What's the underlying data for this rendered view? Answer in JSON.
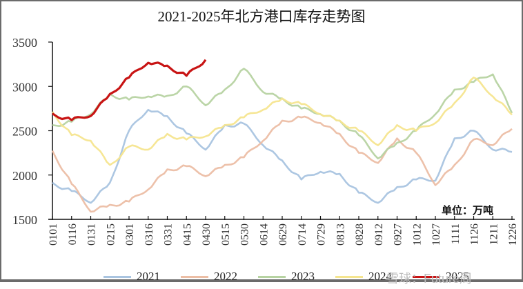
{
  "title": "2021-2025年北方港口库存走势图",
  "unit_label": "单位：万吨",
  "watermark": "雪球：Future周",
  "colors": {
    "2021": "#a9c4e0",
    "2022": "#ecbea5",
    "2023": "#b7d3a2",
    "2024": "#f5e58f",
    "2025": "#c81414"
  },
  "legend": [
    {
      "label": "2021",
      "color": "#a9c4e0"
    },
    {
      "label": "2022",
      "color": "#ecbea5"
    },
    {
      "label": "2023",
      "color": "#b7d3a2"
    },
    {
      "label": "2024",
      "color": "#f5e58f"
    },
    {
      "label": "2025",
      "color": "#c81414"
    }
  ],
  "chart_data": {
    "type": "line",
    "title": "2021-2025年北方港口库存走势图",
    "xlabel": "",
    "ylabel": "单位：万吨",
    "ylim": [
      1500,
      3500
    ],
    "yticks": [
      1500,
      2000,
      2500,
      3000,
      3500
    ],
    "grid": false,
    "legend_position": "bottom",
    "categories": [
      "0101",
      "0116",
      "0131",
      "0215",
      "0301",
      "0316",
      "0331",
      "0415",
      "0430",
      "0515",
      "0530",
      "0614",
      "0629",
      "0714",
      "0729",
      "0813",
      "0828",
      "0912",
      "0927",
      "1012",
      "1027",
      "1111",
      "1126",
      "1211",
      "1226"
    ],
    "series": [
      {
        "name": "2021",
        "values": [
          1900,
          1820,
          1700,
          1900,
          2500,
          2750,
          2650,
          2470,
          2300,
          2550,
          2580,
          2350,
          2150,
          1950,
          2050,
          2000,
          1800,
          1700,
          1850,
          1950,
          1950,
          2400,
          2500,
          2300,
          2260
        ]
      },
      {
        "name": "2022",
        "values": [
          2260,
          1900,
          1600,
          1650,
          1700,
          1850,
          2050,
          2100,
          2000,
          2100,
          2200,
          2400,
          2600,
          2650,
          2600,
          2450,
          2250,
          2150,
          2400,
          2250,
          1900,
          2100,
          2400,
          2350,
          2520
        ]
      },
      {
        "name": "2023",
        "values": [
          2550,
          2600,
          2700,
          2900,
          2850,
          2900,
          2880,
          3000,
          2800,
          2950,
          3200,
          2950,
          2850,
          2750,
          2700,
          2600,
          2450,
          2200,
          2350,
          2500,
          2700,
          2950,
          3050,
          3150,
          2700
        ]
      },
      {
        "name": "2024",
        "values": [
          2700,
          2450,
          2400,
          2100,
          2320,
          2300,
          2450,
          2400,
          2450,
          2550,
          2650,
          2750,
          2850,
          2800,
          2700,
          2600,
          2500,
          2350,
          2550,
          2500,
          2600,
          2800,
          3100,
          2900,
          2680
        ]
      },
      {
        "name": "2025",
        "values": [
          2680,
          2620,
          2680,
          2900,
          3100,
          3280,
          3220,
          3120,
          3300
        ]
      }
    ]
  }
}
